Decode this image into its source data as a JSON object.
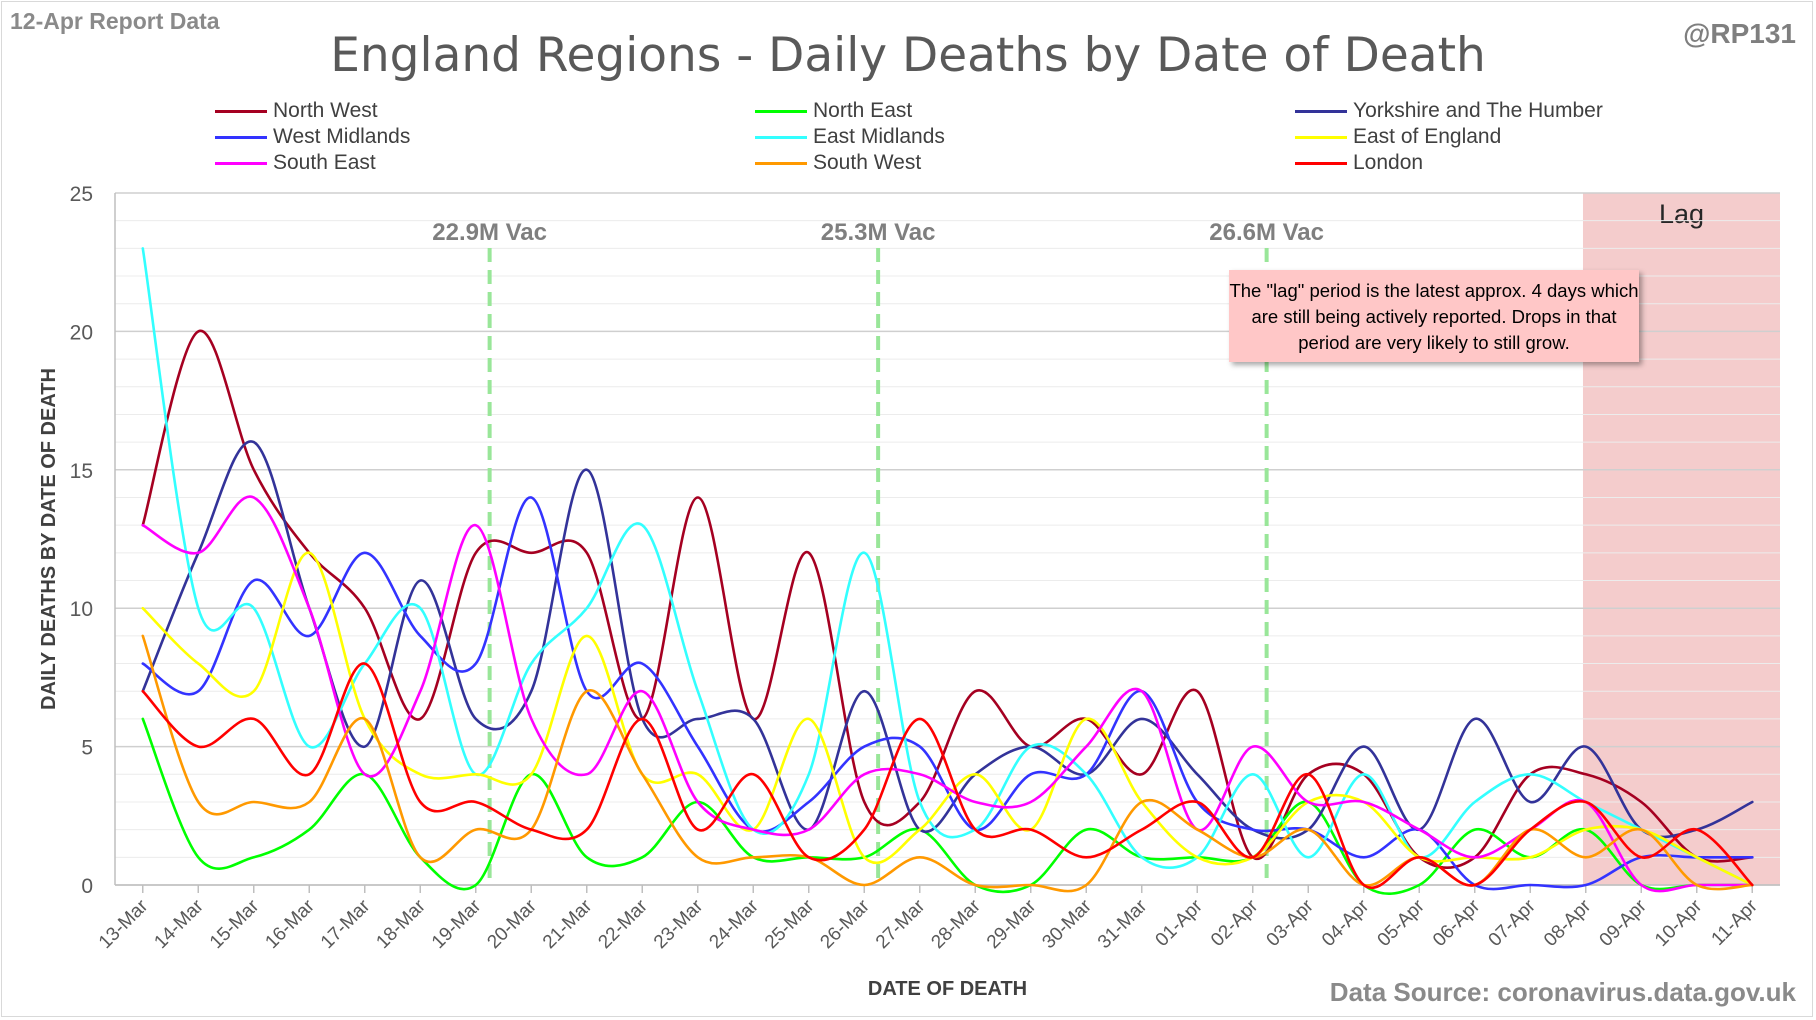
{
  "header": {
    "report_note": "12-Apr Report Data",
    "author": "@RP131",
    "source": "Data Source: coronavirus.data.gov.uk"
  },
  "annotations": {
    "lag_label": "Lag",
    "lag_note": "The \"lag\" period is the latest approx. 4 days which are still being actively reported. Drops in that period are very likely to still grow.",
    "vac_markers": [
      {
        "date": "19-Mar",
        "label": "22.9M Vac"
      },
      {
        "date": "26-Mar",
        "label": "25.3M Vac"
      },
      {
        "date": "02-Apr",
        "label": "26.6M Vac"
      }
    ],
    "lag_start": "08-Apr"
  },
  "colors": {
    "gridline": "#d9d9d9",
    "axis_text": "#595959",
    "lag_fill": "#f4cccc",
    "vac_line": "#99e699"
  },
  "chart_data": {
    "type": "line",
    "title": "England Regions - Daily Deaths by Date of Death",
    "xlabel": "DATE OF DEATH",
    "ylabel": "DAILY DEATHS BY DATE OF DEATH",
    "ylim": [
      0,
      25
    ],
    "yticks": [
      0,
      5,
      10,
      15,
      20,
      25
    ],
    "grid": true,
    "legend_position": "top",
    "x": [
      "13-Mar",
      "14-Mar",
      "15-Mar",
      "16-Mar",
      "17-Mar",
      "18-Mar",
      "19-Mar",
      "20-Mar",
      "21-Mar",
      "22-Mar",
      "23-Mar",
      "24-Mar",
      "25-Mar",
      "26-Mar",
      "27-Mar",
      "28-Mar",
      "29-Mar",
      "30-Mar",
      "31-Mar",
      "01-Apr",
      "02-Apr",
      "03-Apr",
      "04-Apr",
      "05-Apr",
      "06-Apr",
      "07-Apr",
      "08-Apr",
      "09-Apr",
      "10-Apr",
      "11-Apr"
    ],
    "series": [
      {
        "name": "North West",
        "color": "#a50021",
        "values": [
          13,
          20,
          15,
          12,
          10,
          6,
          12,
          12,
          12,
          6,
          14,
          6,
          12,
          3,
          3,
          7,
          5,
          6,
          4,
          7,
          1,
          4,
          4,
          1,
          1,
          4,
          4,
          3,
          1,
          1
        ]
      },
      {
        "name": "North East",
        "color": "#00ff00",
        "values": [
          6,
          1,
          1,
          2,
          4,
          1,
          0,
          4,
          1,
          1,
          3,
          1,
          1,
          1,
          2,
          0,
          0,
          2,
          1,
          1,
          1,
          3,
          0,
          0,
          2,
          1,
          2,
          0,
          0,
          0
        ]
      },
      {
        "name": "Yorkshire and The Humber",
        "color": "#333399",
        "values": [
          7,
          12,
          16,
          10,
          5,
          11,
          6,
          7,
          15,
          6,
          6,
          6,
          2,
          7,
          2,
          4,
          5,
          4,
          6,
          4,
          2,
          2,
          5,
          2,
          6,
          3,
          5,
          2,
          2,
          3
        ]
      },
      {
        "name": "West Midlands",
        "color": "#3333ff",
        "values": [
          8,
          7,
          11,
          9,
          12,
          9,
          8,
          14,
          7,
          8,
          5,
          2,
          3,
          5,
          5,
          2,
          4,
          4,
          7,
          3,
          2,
          2,
          1,
          2,
          0,
          0,
          0,
          1,
          1,
          1
        ]
      },
      {
        "name": "East Midlands",
        "color": "#33ffff",
        "values": [
          23,
          10,
          10,
          5,
          8,
          10,
          4,
          8,
          10,
          13,
          7,
          2,
          4,
          12,
          3,
          2,
          5,
          4,
          1,
          1,
          4,
          1,
          4,
          1,
          3,
          4,
          3,
          2,
          1,
          0
        ]
      },
      {
        "name": "East of England",
        "color": "#ffff00",
        "values": [
          10,
          8,
          7,
          12,
          6,
          4,
          4,
          4,
          9,
          4,
          4,
          2,
          6,
          1,
          2,
          4,
          2,
          6,
          3,
          1,
          1,
          3,
          3,
          1,
          1,
          1,
          2,
          2,
          1,
          0
        ]
      },
      {
        "name": "South East",
        "color": "#ff00ff",
        "values": [
          13,
          12,
          14,
          10,
          4,
          7,
          13,
          6,
          4,
          7,
          3,
          2,
          2,
          4,
          4,
          3,
          3,
          5,
          7,
          2,
          5,
          3,
          3,
          2,
          1,
          2,
          3,
          0,
          0,
          0
        ]
      },
      {
        "name": "South West",
        "color": "#ff9900",
        "values": [
          9,
          3,
          3,
          3,
          6,
          1,
          2,
          2,
          7,
          4,
          1,
          1,
          1,
          0,
          1,
          0,
          0,
          0,
          3,
          2,
          1,
          2,
          0,
          1,
          0,
          2,
          1,
          2,
          0,
          0
        ]
      },
      {
        "name": "London",
        "color": "#ff0000",
        "values": [
          7,
          5,
          6,
          4,
          8,
          3,
          3,
          2,
          2,
          6,
          2,
          4,
          1,
          2,
          6,
          2,
          2,
          1,
          2,
          3,
          1,
          4,
          0,
          1,
          0,
          2,
          3,
          1,
          2,
          0
        ]
      }
    ]
  }
}
